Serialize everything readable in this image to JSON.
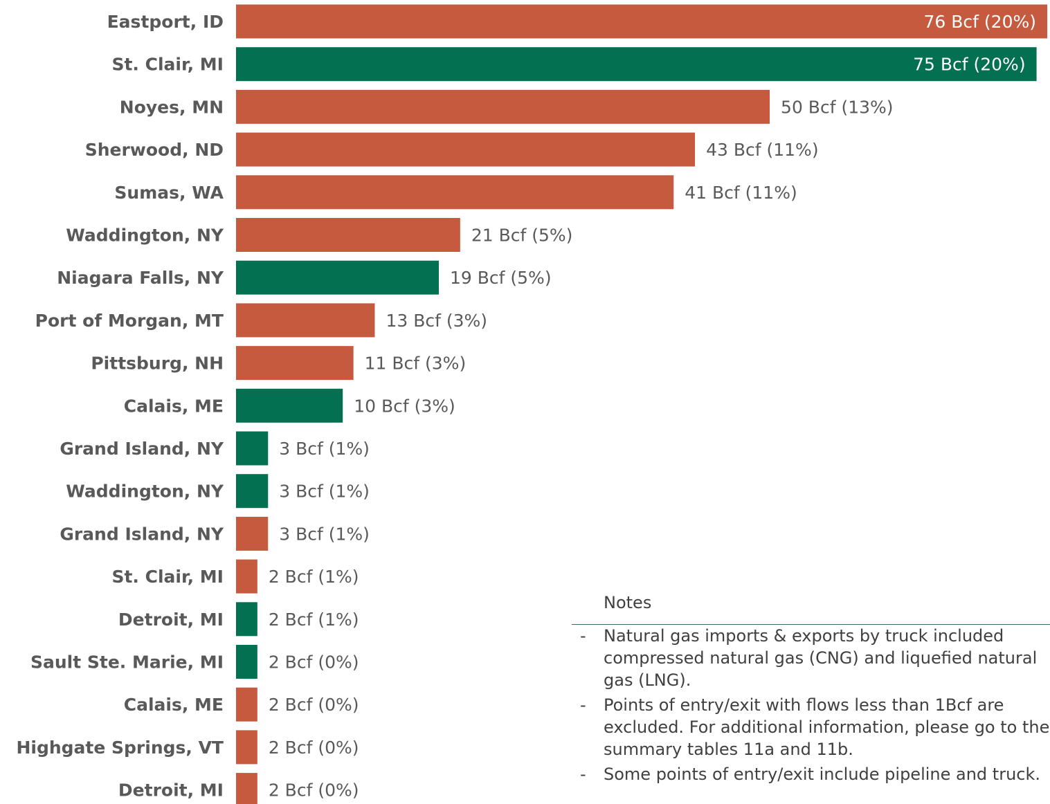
{
  "chart_data": {
    "type": "bar",
    "orientation": "horizontal",
    "categories": [
      "Eastport, ID",
      "St. Clair, MI",
      "Noyes, MN",
      "Sherwood, ND",
      "Sumas, WA",
      "Waddington, NY",
      "Niagara Falls, NY",
      "Port of Morgan, MT",
      "Pittsburg, NH",
      "Calais, ME",
      "Grand Island, NY",
      "Waddington, NY",
      "Grand Island, NY",
      "St. Clair, MI",
      "Detroit, MI",
      "Sault Ste. Marie, MI",
      "Calais, ME",
      "Highgate Springs, VT",
      "Detroit, MI"
    ],
    "values": [
      76,
      75,
      50,
      43,
      41,
      21,
      19,
      13,
      11,
      10,
      3,
      3,
      3,
      2,
      2,
      2,
      2,
      2,
      2
    ],
    "bar_colors": [
      "#c55a3e",
      "#037052",
      "#c55a3e",
      "#c55a3e",
      "#c55a3e",
      "#c55a3e",
      "#037052",
      "#c55a3e",
      "#c55a3e",
      "#037052",
      "#037052",
      "#037052",
      "#c55a3e",
      "#c55a3e",
      "#037052",
      "#037052",
      "#c55a3e",
      "#c55a3e",
      "#c55a3e"
    ],
    "data_labels": [
      "76 Bcf (20%)",
      "75 Bcf (20%)",
      "50 Bcf (13%)",
      "43 Bcf (11%)",
      "41 Bcf (11%)",
      "21 Bcf (5%)",
      "19 Bcf (5%)",
      "13 Bcf (3%)",
      "11 Bcf (3%)",
      "10 Bcf (3%)",
      "3 Bcf (1%)",
      "3 Bcf (1%)",
      "3 Bcf (1%)",
      "2 Bcf (1%)",
      "2 Bcf (1%)",
      "2 Bcf (0%)",
      "2 Bcf (0%)",
      "2 Bcf (0%)",
      "2 Bcf (0%)"
    ],
    "xlim": [
      0,
      76
    ],
    "grid": false,
    "title": "",
    "xlabel": "",
    "ylabel": ""
  },
  "colors": {
    "export_color": "#c55a3e",
    "import_color": "#037052",
    "category_text": "#595959",
    "value_text": "#595959",
    "inside_value_text": "#ffffff"
  },
  "notes": {
    "title": "Notes",
    "items": [
      "Natural gas imports & exports by truck included compressed natural gas (CNG) and liquefied natural gas (LNG).",
      "Points of entry/exit with flows less than 1Bcf are excluded. For additional information, please go to the summary tables 11a and 11b.",
      "Some points of entry/exit include pipeline and truck."
    ]
  }
}
